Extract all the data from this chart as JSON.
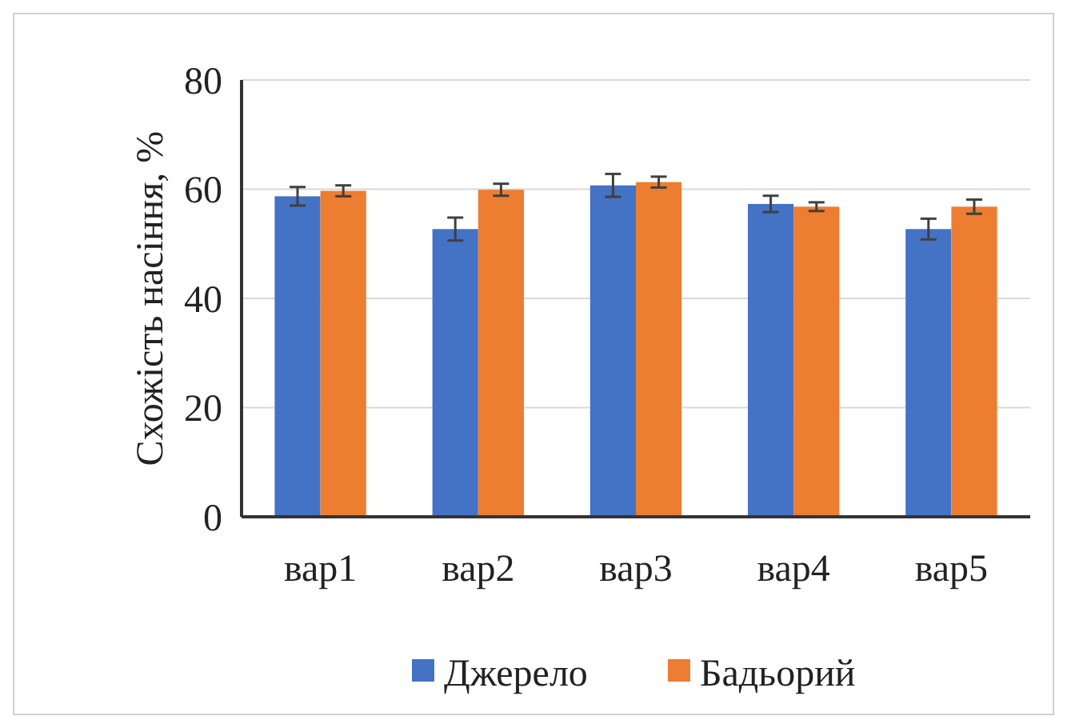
{
  "chart_data": {
    "type": "bar",
    "ylabel": "Схожість насіння, %",
    "categories": [
      "вар1",
      "вар2",
      "вар3",
      "вар4",
      "вар5"
    ],
    "series": [
      {
        "name": "Джерело",
        "color": "#4472c4",
        "values": [
          58.7,
          52.7,
          60.7,
          57.3,
          52.7
        ],
        "errors": [
          1.7,
          2.1,
          2.1,
          1.5,
          1.9
        ]
      },
      {
        "name": "Бадьорий",
        "color": "#ed7d31",
        "values": [
          59.7,
          59.9,
          61.3,
          56.8,
          56.8
        ],
        "errors": [
          1.0,
          1.1,
          1.0,
          0.8,
          1.3
        ]
      }
    ],
    "ylim": [
      0,
      80
    ],
    "yticks": [
      0,
      20,
      40,
      60,
      80
    ],
    "grid": "y",
    "legend": "bottom"
  }
}
